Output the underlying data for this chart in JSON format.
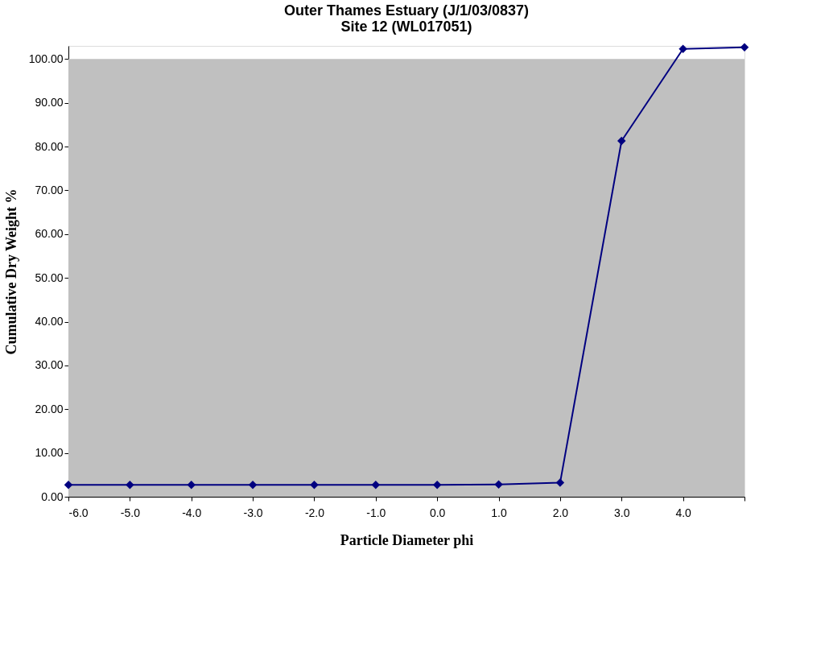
{
  "chart_data": {
    "type": "line",
    "title": [
      "Outer Thames Estuary (J/1/03/0837)",
      "Site 12 (WL017051)"
    ],
    "xlabel": "Particle Diameter phi",
    "ylabel": "Cumulative Dry Weight %",
    "x": [
      -6,
      -5,
      -4,
      -3,
      -2,
      -1,
      0,
      1,
      2,
      3,
      4,
      5
    ],
    "series": [
      {
        "color": "#000080",
        "values": [
          2.7,
          2.7,
          2.7,
          2.7,
          2.7,
          2.7,
          2.7,
          2.8,
          3.2,
          81.3,
          102.3,
          102.7
        ]
      }
    ],
    "xlim": [
      -6,
      5
    ],
    "xticks": [
      {
        "value": -6,
        "label": "-6.0"
      },
      {
        "value": -5,
        "label": "-5.0"
      },
      {
        "value": -4,
        "label": "-4.0"
      },
      {
        "value": -3,
        "label": "-3.0"
      },
      {
        "value": -2,
        "label": "-2.0"
      },
      {
        "value": -1,
        "label": "-1.0"
      },
      {
        "value": 0,
        "label": "0.0"
      },
      {
        "value": 1,
        "label": "1.0"
      },
      {
        "value": 2,
        "label": "2.0"
      },
      {
        "value": 3,
        "label": "3.0"
      },
      {
        "value": 4,
        "label": "4.0"
      },
      {
        "value": 5,
        "label": null
      }
    ],
    "ylim": [
      0,
      103
    ],
    "yticks": [
      {
        "value": 0,
        "label": "0.00"
      },
      {
        "value": 10,
        "label": "10.00"
      },
      {
        "value": 20,
        "label": "20.00"
      },
      {
        "value": 30,
        "label": "30.00"
      },
      {
        "value": 40,
        "label": "40.00"
      },
      {
        "value": 50,
        "label": "50.00"
      },
      {
        "value": 60,
        "label": "60.00"
      },
      {
        "value": 70,
        "label": "70.00"
      },
      {
        "value": 80,
        "label": "80.00"
      },
      {
        "value": 90,
        "label": "90.00"
      },
      {
        "value": 100,
        "label": "100.00"
      }
    ],
    "bands": [
      {
        "axis": "y",
        "from": 0,
        "to": 100,
        "color": "#c0c0c0"
      }
    ],
    "marker": "diamond",
    "line_style": "solid",
    "grid": false
  }
}
